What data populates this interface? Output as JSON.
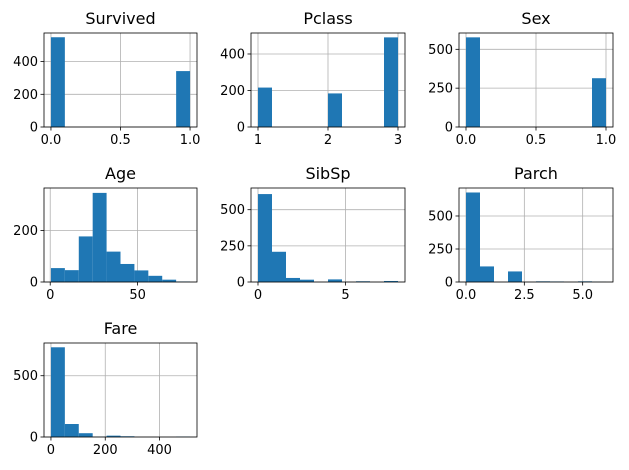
{
  "chart_data": [
    {
      "type": "bar",
      "title": "Survived",
      "xlabel": "",
      "ylabel": "",
      "xlim": [
        -0.05,
        1.05
      ],
      "ylim": [
        0,
        575
      ],
      "bin_edges": [
        0,
        0.1,
        0.2,
        0.3,
        0.4,
        0.5,
        0.6,
        0.7,
        0.8,
        0.9,
        1.0
      ],
      "values": [
        549,
        0,
        0,
        0,
        0,
        0,
        0,
        0,
        0,
        342
      ],
      "xticks": [
        0,
        0.5,
        1.0
      ],
      "xtick_labels": [
        "0.0",
        "0.5",
        "1.0"
      ],
      "yticks": [
        0,
        200,
        400
      ],
      "ytick_labels": [
        "0",
        "200",
        "400"
      ],
      "color": "#1f77b4",
      "grid": true
    },
    {
      "type": "bar",
      "title": "Pclass",
      "xlabel": "",
      "ylabel": "",
      "xlim": [
        0.9,
        3.1
      ],
      "ylim": [
        0,
        515
      ],
      "bin_edges": [
        1.0,
        1.2,
        1.4,
        1.6,
        1.8,
        2.0,
        2.2,
        2.4,
        2.6,
        2.8,
        3.0
      ],
      "values": [
        216,
        0,
        0,
        0,
        0,
        184,
        0,
        0,
        0,
        491
      ],
      "xticks": [
        1,
        2,
        3
      ],
      "xtick_labels": [
        "1",
        "2",
        "3"
      ],
      "yticks": [
        0,
        200,
        400
      ],
      "ytick_labels": [
        "0",
        "200",
        "400"
      ],
      "color": "#1f77b4",
      "grid": true
    },
    {
      "type": "bar",
      "title": "Sex",
      "xlabel": "",
      "ylabel": "",
      "xlim": [
        -0.05,
        1.05
      ],
      "ylim": [
        0,
        605
      ],
      "bin_edges": [
        0,
        0.1,
        0.2,
        0.3,
        0.4,
        0.5,
        0.6,
        0.7,
        0.8,
        0.9,
        1.0
      ],
      "values": [
        577,
        0,
        0,
        0,
        0,
        0,
        0,
        0,
        0,
        314
      ],
      "xticks": [
        0,
        0.5,
        1.0
      ],
      "xtick_labels": [
        "0.0",
        "0.5",
        "1.0"
      ],
      "yticks": [
        0,
        250,
        500
      ],
      "ytick_labels": [
        "0",
        "250",
        "500"
      ],
      "color": "#1f77b4",
      "grid": true
    },
    {
      "type": "bar",
      "title": "Age",
      "xlabel": "",
      "ylabel": "",
      "xlim": [
        -3.56,
        83.98
      ],
      "ylim": [
        0,
        365
      ],
      "bin_edges": [
        0.42,
        8.38,
        16.34,
        24.29,
        32.25,
        40.21,
        48.17,
        56.13,
        64.08,
        72.04,
        80.0
      ],
      "values": [
        54,
        46,
        177,
        346,
        118,
        70,
        45,
        24,
        9,
        2
      ],
      "xticks": [
        0,
        50
      ],
      "xtick_labels": [
        "0",
        "50"
      ],
      "yticks": [
        0,
        200
      ],
      "ytick_labels": [
        "0",
        "200"
      ],
      "color": "#1f77b4",
      "grid": true
    },
    {
      "type": "bar",
      "title": "SibSp",
      "xlabel": "",
      "ylabel": "",
      "xlim": [
        -0.4,
        8.4
      ],
      "ylim": [
        0,
        650
      ],
      "bin_edges": [
        0,
        0.8,
        1.6,
        2.4,
        3.2,
        4.0,
        4.8,
        5.6,
        6.4,
        7.2,
        8.0
      ],
      "values": [
        608,
        209,
        28,
        16,
        0,
        18,
        0,
        5,
        0,
        7
      ],
      "xticks": [
        0,
        5
      ],
      "xtick_labels": [
        "0",
        "5"
      ],
      "yticks": [
        0,
        250,
        500
      ],
      "ytick_labels": [
        "0",
        "250",
        "500"
      ],
      "color": "#1f77b4",
      "grid": true
    },
    {
      "type": "bar",
      "title": "Parch",
      "xlabel": "",
      "ylabel": "",
      "xlim": [
        -0.3,
        6.3
      ],
      "ylim": [
        0,
        712
      ],
      "bin_edges": [
        0,
        0.6,
        1.2,
        1.8,
        2.4,
        3.0,
        3.6,
        4.2,
        4.8,
        5.4,
        6.0
      ],
      "values": [
        678,
        118,
        0,
        80,
        0,
        5,
        4,
        0,
        5,
        1
      ],
      "xticks": [
        0,
        2.5,
        5.0
      ],
      "xtick_labels": [
        "0.0",
        "2.5",
        "5.0"
      ],
      "yticks": [
        0,
        250,
        500
      ],
      "ytick_labels": [
        "0",
        "250",
        "500"
      ],
      "color": "#1f77b4",
      "grid": true
    },
    {
      "type": "bar",
      "title": "Fare",
      "xlabel": "",
      "ylabel": "",
      "xlim": [
        -25.6,
        537.9
      ],
      "ylim": [
        0,
        767
      ],
      "bin_edges": [
        0,
        51.23,
        102.47,
        153.7,
        204.93,
        256.16,
        307.4,
        358.63,
        409.86,
        461.1,
        512.33
      ],
      "values": [
        732,
        106,
        31,
        2,
        11,
        6,
        0,
        0,
        0,
        3
      ],
      "xticks": [
        0,
        200,
        400
      ],
      "xtick_labels": [
        "0",
        "200",
        "400"
      ],
      "yticks": [
        0,
        500
      ],
      "ytick_labels": [
        "0",
        "500"
      ],
      "color": "#1f77b4",
      "grid": true
    }
  ]
}
